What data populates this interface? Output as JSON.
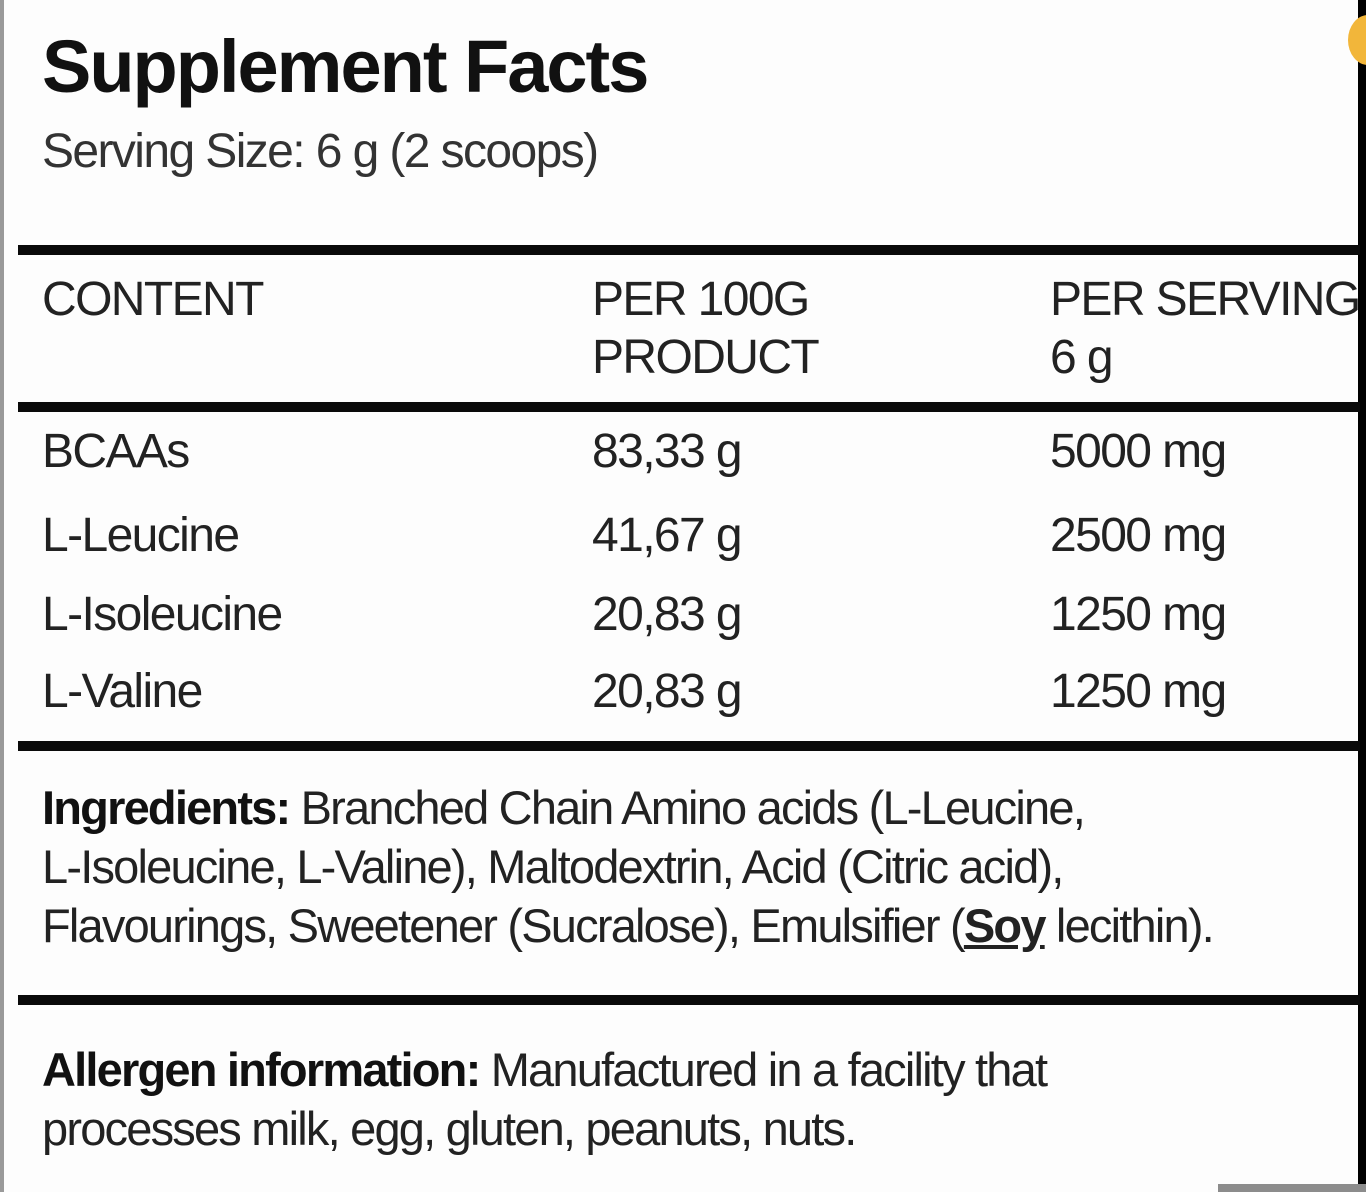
{
  "title": "Supplement Facts",
  "serving_size": "Serving Size: 6 g (2 scoops)",
  "table": {
    "headers": [
      {
        "line1": "CONTENT",
        "line2": ""
      },
      {
        "line1": "PER 100G",
        "line2": "PRODUCT"
      },
      {
        "line1": "PER SERVING",
        "line2": "6 g"
      }
    ],
    "rows": [
      {
        "name": "BCAAs",
        "per100": "83,33 g",
        "serving": "5000 mg"
      },
      {
        "name": "L-Leucine",
        "per100": "41,67 g",
        "serving": "2500 mg"
      },
      {
        "name": "L-Isoleucine",
        "per100": "20,83 g",
        "serving": "1250 mg"
      },
      {
        "name": "L-Valine",
        "per100": "20,83 g",
        "serving": "1250 mg"
      }
    ]
  },
  "ingredients": {
    "label": "Ingredients:",
    "line1": " Branched Chain Amino acids (L-Leucine,",
    "line2": "L-Isoleucine, L-Valine), Maltodextrin, Acid (Citric acid),",
    "line3_pre": "Flavourings, Sweetener (Sucralose), Emulsifier (",
    "allergen_word": "Soy",
    "line3_post": " lecithin)."
  },
  "allergen": {
    "label": "Allergen information:",
    "line1": " Manufactured in a facility that",
    "line2": "processes milk, egg, gluten, peanuts, nuts."
  },
  "colors": {
    "rule": "#0a0a0a",
    "accent_dot": "#f2b63a"
  }
}
